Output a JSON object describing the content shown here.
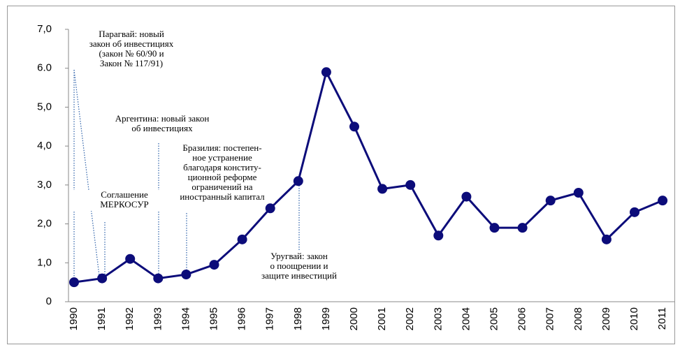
{
  "chart_data": {
    "type": "line",
    "categories": [
      "1990",
      "1991",
      "1992",
      "1993",
      "1994",
      "1995",
      "1996",
      "1997",
      "1998",
      "1999",
      "2000",
      "2001",
      "2002",
      "2003",
      "2004",
      "2005",
      "2006",
      "2007",
      "2008",
      "2009",
      "2010",
      "2011"
    ],
    "series": [
      {
        "color": "#0c0c7a",
        "values": [
          0.5,
          0.6,
          1.1,
          0.6,
          0.7,
          0.95,
          1.6,
          2.4,
          3.1,
          5.9,
          4.5,
          2.9,
          3.0,
          1.7,
          2.7,
          1.9,
          1.9,
          2.6,
          2.8,
          1.6,
          2.3,
          2.6
        ]
      }
    ],
    "ylim": [
      0,
      7
    ],
    "yticks": [
      0,
      {
        "value": 1,
        "label": "1,0"
      },
      {
        "value": 2,
        "label": "2,0"
      },
      {
        "value": 3,
        "label": "3,0"
      },
      {
        "value": 4,
        "label": "4,0"
      },
      {
        "value": 5,
        "label": "5,0"
      },
      {
        "value": 6,
        "label": "6.0"
      },
      {
        "value": 7,
        "label": "7,0"
      }
    ],
    "annotations": [
      {
        "lines": [
          "Парагвай: новый",
          "закон об инвестициях",
          "(закон № 60/90 и",
          "Закон № 117/91)"
        ]
      },
      {
        "lines": [
          "Аргентина: новый закон",
          "об инвестициях"
        ]
      },
      {
        "lines": [
          "Соглашение",
          "МЕРКОСУР"
        ]
      },
      {
        "lines": [
          "Бразилия: постепен-",
          "ное устранение",
          "благодаря конститу-",
          "ционной реформе",
          "ограничений на",
          "иностранный капитал"
        ]
      },
      {
        "lines": [
          "Уругвай: закон",
          "о поощрении и",
          "защите инвестиций"
        ]
      }
    ]
  }
}
